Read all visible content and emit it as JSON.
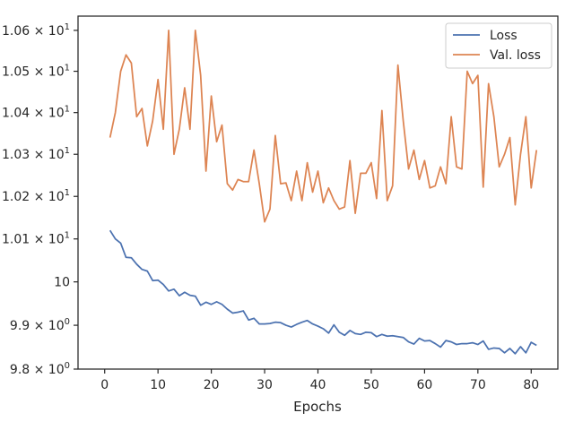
{
  "chart_data": {
    "type": "line",
    "title": "",
    "xlabel": "Epochs",
    "ylabel": "",
    "yscale": "log",
    "xlim": [
      -5,
      85
    ],
    "ylim": [
      9.8,
      10.635
    ],
    "grid": false,
    "legend_position": "top-right",
    "x_ticks": [
      0,
      10,
      20,
      30,
      40,
      50,
      60,
      70,
      80
    ],
    "x_tick_labels": [
      "0",
      "10",
      "20",
      "30",
      "40",
      "50",
      "60",
      "70",
      "80"
    ],
    "y_ticks": [
      9.8,
      9.9,
      10.0,
      10.1,
      10.2,
      10.3,
      10.4,
      10.5,
      10.6
    ],
    "y_tick_labels": [
      {
        "mant": "9.8",
        "exp": "0"
      },
      {
        "mant": "9.9",
        "exp": "0"
      },
      {
        "mant": "10",
        "exp": ""
      },
      {
        "mant": "1.01",
        "exp": "1"
      },
      {
        "mant": "1.02",
        "exp": "1"
      },
      {
        "mant": "1.03",
        "exp": "1"
      },
      {
        "mant": "1.04",
        "exp": "1"
      },
      {
        "mant": "1.05",
        "exp": "1"
      },
      {
        "mant": "1.06",
        "exp": "1"
      }
    ],
    "x": [
      1,
      2,
      3,
      4,
      5,
      6,
      7,
      8,
      9,
      10,
      11,
      12,
      13,
      14,
      15,
      16,
      17,
      18,
      19,
      20,
      21,
      22,
      23,
      24,
      25,
      26,
      27,
      28,
      29,
      30,
      31,
      32,
      33,
      34,
      35,
      36,
      37,
      38,
      39,
      40,
      41,
      42,
      43,
      44,
      45,
      46,
      47,
      48,
      49,
      50,
      51,
      52,
      53,
      54,
      55,
      56,
      57,
      58,
      59,
      60,
      61,
      62,
      63,
      64,
      65,
      66,
      67,
      68,
      69,
      70,
      71,
      72,
      73,
      74,
      75,
      76,
      77,
      78,
      79,
      80,
      81
    ],
    "series": [
      {
        "name": "Loss",
        "color": "#4c72b0",
        "values": [
          10.12,
          10.1,
          10.09,
          10.057,
          10.056,
          10.041,
          10.029,
          10.025,
          10.003,
          10.004,
          9.994,
          9.979,
          9.983,
          9.968,
          9.976,
          9.969,
          9.967,
          9.946,
          9.953,
          9.948,
          9.954,
          9.948,
          9.937,
          9.928,
          9.93,
          9.933,
          9.912,
          9.916,
          9.903,
          9.903,
          9.904,
          9.907,
          9.906,
          9.9,
          9.896,
          9.902,
          9.907,
          9.911,
          9.903,
          9.898,
          9.892,
          9.882,
          9.901,
          9.884,
          9.877,
          9.888,
          9.881,
          9.879,
          9.884,
          9.883,
          9.874,
          9.879,
          9.875,
          9.876,
          9.874,
          9.872,
          9.862,
          9.857,
          9.87,
          9.864,
          9.865,
          9.858,
          9.85,
          9.865,
          9.862,
          9.856,
          9.858,
          9.858,
          9.86,
          9.856,
          9.864,
          9.845,
          9.848,
          9.847,
          9.837,
          9.847,
          9.835,
          9.851,
          9.837,
          9.861,
          9.854
        ]
      },
      {
        "name": "Val. loss",
        "color": "#dd8452",
        "values": [
          10.34,
          10.4,
          10.5,
          10.54,
          10.52,
          10.39,
          10.41,
          10.32,
          10.38,
          10.48,
          10.36,
          10.6,
          10.3,
          10.36,
          10.46,
          10.36,
          10.6,
          10.49,
          10.26,
          10.44,
          10.33,
          10.37,
          10.23,
          10.215,
          10.24,
          10.235,
          10.235,
          10.31,
          10.23,
          10.14,
          10.17,
          10.345,
          10.23,
          10.232,
          10.19,
          10.26,
          10.19,
          10.28,
          10.21,
          10.26,
          10.185,
          10.22,
          10.19,
          10.17,
          10.175,
          10.285,
          10.16,
          10.255,
          10.255,
          10.28,
          10.195,
          10.405,
          10.19,
          10.225,
          10.515,
          10.38,
          10.265,
          10.31,
          10.24,
          10.285,
          10.22,
          10.225,
          10.27,
          10.23,
          10.39,
          10.27,
          10.265,
          10.5,
          10.47,
          10.49,
          10.222,
          10.47,
          10.39,
          10.27,
          10.3,
          10.34,
          10.18,
          10.3,
          10.39,
          10.22,
          10.31
        ]
      }
    ]
  }
}
